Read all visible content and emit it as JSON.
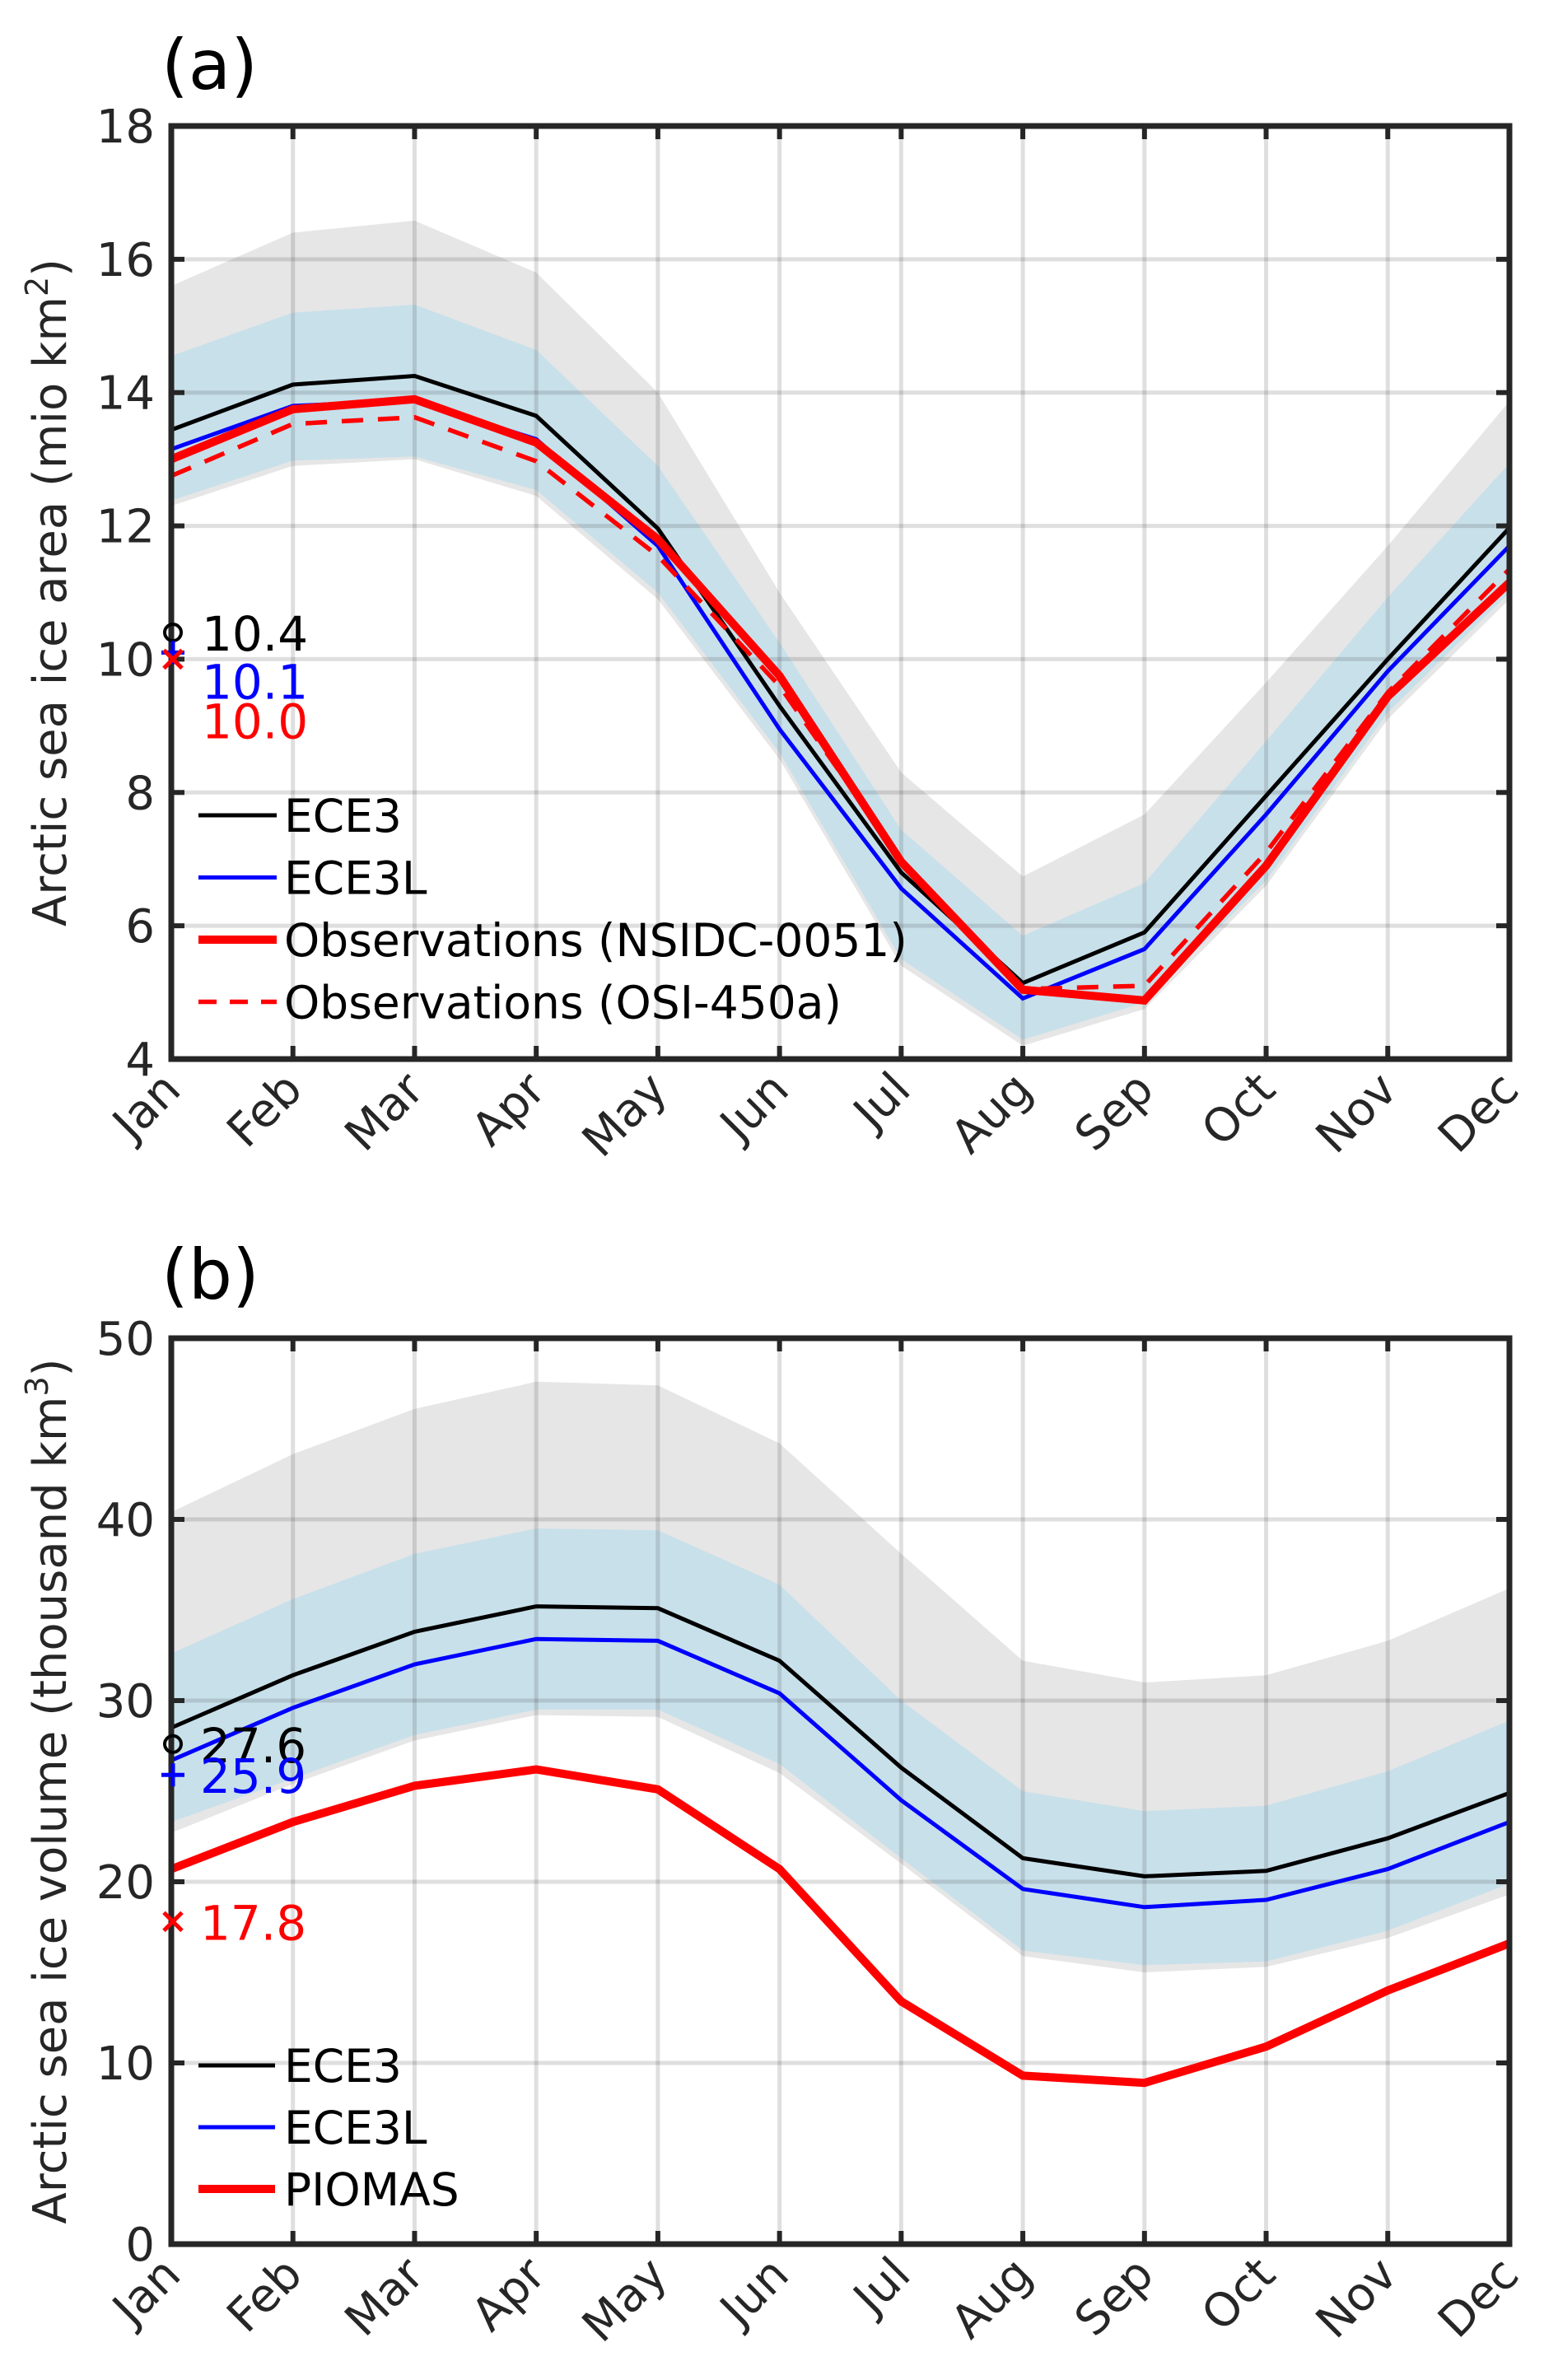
{
  "chart_data": [
    {
      "id": "a",
      "type": "line",
      "panel_label": "(a)",
      "title": "",
      "xlabel": "",
      "ylabel": "Arctic sea ice area (mio km",
      "ylabel_sup": "2",
      "ylabel_end": ")",
      "categories": [
        "Jan",
        "Feb",
        "Mar",
        "Apr",
        "May",
        "Jun",
        "Jul",
        "Aug",
        "Sep",
        "Oct",
        "Nov",
        "Dec"
      ],
      "ylim": [
        4,
        18
      ],
      "yticks": [
        4,
        6,
        8,
        10,
        12,
        14,
        16,
        18
      ],
      "grid": true,
      "bands": [
        {
          "name": "ECE3 spread",
          "color": "#e6e6e6",
          "lower": [
            12.3,
            12.9,
            13.0,
            12.45,
            10.9,
            8.5,
            5.4,
            4.2,
            4.75,
            6.6,
            9.1,
            10.9
          ],
          "upper": [
            15.6,
            16.4,
            16.58,
            15.8,
            14.0,
            11.0,
            8.3,
            6.74,
            7.67,
            9.65,
            11.7,
            13.87
          ]
        },
        {
          "name": "ECE3L spread",
          "color": "#c6e0ea",
          "lower": [
            12.38,
            12.98,
            13.04,
            12.54,
            11.0,
            8.6,
            5.5,
            4.29,
            4.85,
            6.68,
            9.2,
            11.0
          ],
          "upper": [
            14.55,
            15.2,
            15.32,
            14.64,
            12.9,
            10.25,
            7.44,
            5.85,
            6.64,
            8.77,
            10.93,
            12.94
          ]
        }
      ],
      "series": [
        {
          "name": "ECE3",
          "color": "#000000",
          "style": "solid",
          "width": "thin",
          "values": [
            13.44,
            14.12,
            14.25,
            13.65,
            11.96,
            9.3,
            6.8,
            5.14,
            5.9,
            7.95,
            10.0,
            11.97
          ]
        },
        {
          "name": "ECE3L",
          "color": "#0000ff",
          "style": "solid",
          "width": "thin",
          "values": [
            13.15,
            13.8,
            13.88,
            13.3,
            11.7,
            8.95,
            6.56,
            4.91,
            5.65,
            7.67,
            9.82,
            11.7
          ]
        },
        {
          "name": "Observations (NSIDC-0051)",
          "color": "#ff0000",
          "style": "solid",
          "width": "thick",
          "values": [
            13.0,
            13.75,
            13.9,
            13.25,
            11.8,
            9.75,
            6.96,
            5.04,
            4.88,
            6.9,
            9.44,
            11.15
          ]
        },
        {
          "name": "Observations (OSI-450a)",
          "color": "#ff0000",
          "style": "dashed",
          "width": "thin",
          "values": [
            12.75,
            13.53,
            13.63,
            12.97,
            11.55,
            9.6,
            7.0,
            5.05,
            5.1,
            7.1,
            9.5,
            11.35
          ]
        }
      ],
      "annotations": [
        {
          "marker": "circle",
          "value": 10.4,
          "text": "10.4",
          "color": "#000000"
        },
        {
          "marker": "plus",
          "value": 10.1,
          "text": "10.1",
          "color": "#0000ff"
        },
        {
          "marker": "x",
          "value": 10.0,
          "text": "10.0",
          "color": "#ff0000"
        }
      ],
      "legend": {
        "placement": "lower-left",
        "entries": [
          "ECE3",
          "ECE3L",
          "Observations (NSIDC-0051)",
          "Observations (OSI-450a)"
        ]
      }
    },
    {
      "id": "b",
      "type": "line",
      "panel_label": "(b)",
      "title": "",
      "xlabel": "",
      "ylabel": "Arctic sea ice volume (thousand km",
      "ylabel_sup": "3",
      "ylabel_end": ")",
      "categories": [
        "Jan",
        "Feb",
        "Mar",
        "Apr",
        "May",
        "Jun",
        "Jul",
        "Aug",
        "Sep",
        "Oct",
        "Nov",
        "Dec"
      ],
      "ylim": [
        0,
        50
      ],
      "yticks": [
        0,
        10,
        20,
        30,
        40,
        50
      ],
      "grid": true,
      "bands": [
        {
          "name": "ECE3 spread",
          "color": "#e6e6e6",
          "lower": [
            22.7,
            25.4,
            27.8,
            29.2,
            29.1,
            26.0,
            21.0,
            15.9,
            15.0,
            15.3,
            16.9,
            19.3
          ],
          "upper": [
            40.4,
            43.6,
            46.1,
            47.6,
            47.4,
            44.2,
            38.1,
            32.2,
            31.0,
            31.4,
            33.3,
            36.2
          ]
        },
        {
          "name": "ECE3L spread",
          "color": "#c6e0ea",
          "lower": [
            23.3,
            25.7,
            28.1,
            29.5,
            29.5,
            26.5,
            21.3,
            16.2,
            15.4,
            15.6,
            17.3,
            19.9
          ],
          "upper": [
            32.6,
            35.6,
            38.1,
            39.5,
            39.4,
            36.4,
            30.0,
            25.0,
            23.9,
            24.2,
            26.1,
            28.9
          ]
        }
      ],
      "series": [
        {
          "name": "ECE3",
          "color": "#000000",
          "style": "solid",
          "width": "thin",
          "values": [
            28.5,
            31.4,
            33.8,
            35.2,
            35.1,
            32.2,
            26.3,
            21.3,
            20.3,
            20.6,
            22.4,
            24.9
          ]
        },
        {
          "name": "ECE3L",
          "color": "#0000ff",
          "style": "solid",
          "width": "thin",
          "values": [
            26.7,
            29.6,
            32.0,
            33.4,
            33.3,
            30.4,
            24.5,
            19.6,
            18.6,
            19.0,
            20.7,
            23.3
          ]
        },
        {
          "name": "PIOMAS",
          "color": "#ff0000",
          "style": "solid",
          "width": "thick",
          "values": [
            20.7,
            23.3,
            25.3,
            26.2,
            25.1,
            20.7,
            13.4,
            9.3,
            8.9,
            10.9,
            14.0,
            16.6
          ]
        }
      ],
      "annotations": [
        {
          "marker": "circle",
          "value": 27.6,
          "text": "27.6",
          "color": "#000000"
        },
        {
          "marker": "plus",
          "value": 25.9,
          "text": "25.9",
          "color": "#0000ff"
        },
        {
          "marker": "x",
          "value": 17.8,
          "text": "17.8",
          "color": "#ff0000"
        }
      ],
      "legend": {
        "placement": "lower-left",
        "entries": [
          "ECE3",
          "ECE3L",
          "PIOMAS"
        ]
      }
    }
  ]
}
